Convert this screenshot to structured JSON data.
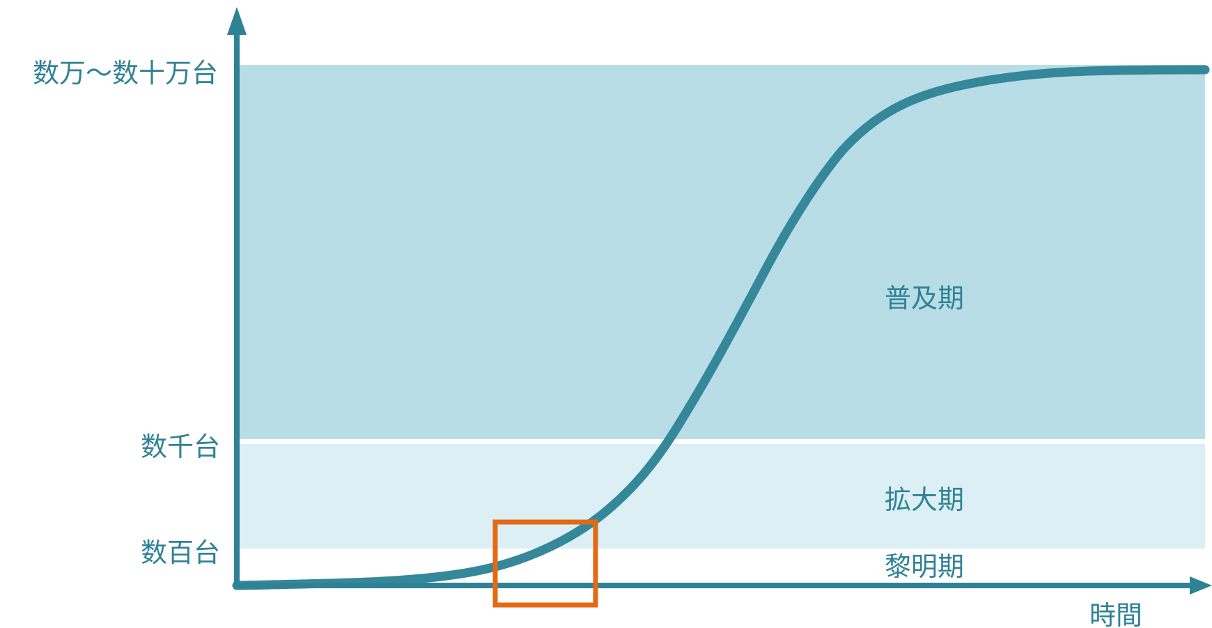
{
  "colors": {
    "axis": "#2f8296",
    "curve": "#35879a",
    "band_upper": "#b8dde6",
    "band_middle": "#dbeff4",
    "highlight_box": "#e36a12",
    "text": "#2f8296"
  },
  "y_axis": {
    "levels": [
      {
        "id": "top",
        "label": "数万～数十万台"
      },
      {
        "id": "thousands",
        "label": "数千台"
      },
      {
        "id": "hundreds",
        "label": "数百台"
      }
    ]
  },
  "x_axis": {
    "label": "時間"
  },
  "phases": [
    {
      "id": "spread",
      "label": "普及期"
    },
    {
      "id": "expansion",
      "label": "拡大期"
    },
    {
      "id": "dawn",
      "label": "黎明期"
    }
  ]
}
